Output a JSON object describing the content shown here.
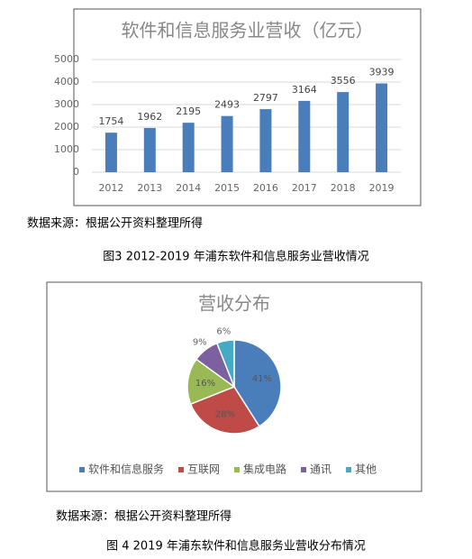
{
  "chart_data": [
    {
      "type": "bar",
      "title": "软件和信息服务业营收（亿元）",
      "categories": [
        "2012",
        "2013",
        "2014",
        "2015",
        "2016",
        "2017",
        "2018",
        "2019"
      ],
      "values": [
        1754,
        1962,
        2195,
        2493,
        2797,
        3164,
        3556,
        3939
      ],
      "color": "#4a7ebb",
      "ylim": [
        0,
        5000
      ],
      "yticks": [
        0,
        1000,
        2000,
        3000,
        4000,
        5000
      ],
      "grid": true
    },
    {
      "type": "pie",
      "title": "营收分布",
      "categories": [
        "软件和信息服务",
        "互联网",
        "集成电路",
        "通讯",
        "其他"
      ],
      "values": [
        41,
        28,
        16,
        9,
        6
      ],
      "value_labels": [
        "41%",
        "28%",
        "16%",
        "9%",
        "6%"
      ],
      "colors": [
        "#4a7ebb",
        "#be4b48",
        "#98b954",
        "#7d60a0",
        "#46aac5"
      ],
      "legend": "bottom"
    }
  ],
  "notes": [
    {
      "source": "数据来源：根据公开资料整理所得",
      "caption": "图3 2012-2019 年浦东软件和信息服务业营收情况"
    },
    {
      "source": "数据来源：根据公开资料整理所得",
      "caption": "图 4 2019 年浦东软件和信息服务业营收分布情况"
    }
  ]
}
